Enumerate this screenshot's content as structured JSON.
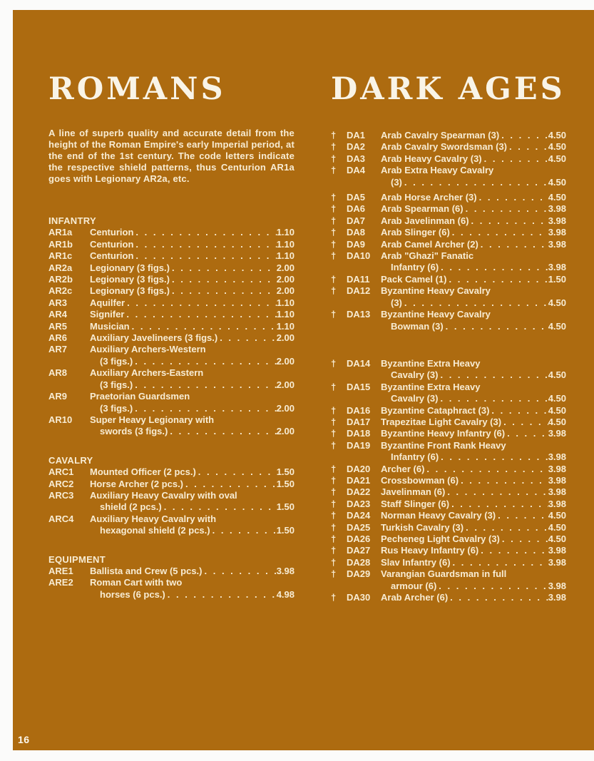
{
  "page": {
    "number": "16"
  },
  "colors": {
    "sheet_bg": "#ad6b10",
    "text_color": "#f8ecd3",
    "title_color": "#f9f4e7",
    "page_bg": "#fbfbfa"
  },
  "columns": [
    {
      "title": "ROMANS",
      "intro": "A line of superb quality and accurate detail from the height of the Roman Empire's early Imperial period, at the end of the 1st century. The code letters indicate the respective shield patterns, thus Centurion AR1a goes with Legionary AR2a, etc.",
      "sections": [
        {
          "header": "INFANTRY",
          "items": [
            {
              "code": "AR1a",
              "lines": [
                "Centurion"
              ],
              "price": "1.10"
            },
            {
              "code": "AR1b",
              "lines": [
                "Centurion"
              ],
              "price": "1.10"
            },
            {
              "code": "AR1c",
              "lines": [
                "Centurion"
              ],
              "price": "1.10"
            },
            {
              "code": "AR2a",
              "lines": [
                "Legionary (3 figs.)"
              ],
              "price": "2.00"
            },
            {
              "code": "AR2b",
              "lines": [
                "Legionary (3 figs.)"
              ],
              "price": "2.00"
            },
            {
              "code": "AR2c",
              "lines": [
                "Legionary (3 figs.)"
              ],
              "price": "2.00"
            },
            {
              "code": "AR3",
              "lines": [
                "Aquilfer"
              ],
              "price": "1.10"
            },
            {
              "code": "AR4",
              "lines": [
                "Signifer"
              ],
              "price": "1.10"
            },
            {
              "code": "AR5",
              "lines": [
                "Musician"
              ],
              "price": "1.10"
            },
            {
              "code": "AR6",
              "lines": [
                "Auxiliary Javelineers (3 figs.)"
              ],
              "price": "2.00"
            },
            {
              "code": "AR7",
              "lines": [
                "Auxiliary Archers-Western",
                "(3 figs.)"
              ],
              "price": "2.00"
            },
            {
              "code": "AR8",
              "lines": [
                "Auxiliary Archers-Eastern",
                "(3 figs.)"
              ],
              "price": "2.00"
            },
            {
              "code": "AR9",
              "lines": [
                "Praetorian Guardsmen",
                "(3 figs.)"
              ],
              "price": "2.00"
            },
            {
              "code": "AR10",
              "lines": [
                "Super Heavy Legionary with",
                "swords (3 figs.)"
              ],
              "price": "2.00"
            }
          ]
        },
        {
          "header": "CAVALRY",
          "items": [
            {
              "code": "ARC1",
              "lines": [
                "Mounted Officer (2 pcs.)"
              ],
              "price": "1.50"
            },
            {
              "code": "ARC2",
              "lines": [
                "Horse Archer (2 pcs.)"
              ],
              "price": "1.50"
            },
            {
              "code": "ARC3",
              "lines": [
                "Auxiliary Heavy Cavalry with oval",
                "shield (2 pcs.)"
              ],
              "price": "1.50"
            },
            {
              "code": "ARC4",
              "lines": [
                "Auxiliary Heavy Cavalry with",
                "hexagonal shield (2 pcs.)"
              ],
              "price": "1.50"
            }
          ]
        },
        {
          "header": "EQUIPMENT",
          "items": [
            {
              "code": "ARE1",
              "lines": [
                "Ballista and Crew (5 pcs.)"
              ],
              "price": "3.98"
            },
            {
              "code": "ARE2",
              "lines": [
                "Roman Cart with two",
                "horses (6 pcs.)"
              ],
              "price": "4.98"
            }
          ]
        }
      ]
    },
    {
      "title": "DARK AGES",
      "intro": "",
      "sections": [
        {
          "header": "",
          "items": [
            {
              "dagger": "†",
              "code": "DA1",
              "lines": [
                "Arab Cavalry Spearman (3)"
              ],
              "price": "4.50"
            },
            {
              "dagger": "†",
              "code": "DA2",
              "lines": [
                "Arab Cavalry Swordsman (3)"
              ],
              "price": "4.50"
            },
            {
              "dagger": "†",
              "code": "DA3",
              "lines": [
                "Arab Heavy Cavalry (3)"
              ],
              "price": "4.50"
            },
            {
              "dagger": "†",
              "code": "DA4",
              "lines": [
                "Arab Extra Heavy Cavalry",
                "(3)"
              ],
              "price": "4.50"
            },
            {
              "dagger": "†",
              "code": "DA5",
              "lines": [
                "Arab Horse Archer (3)"
              ],
              "price": "4.50",
              "space_before": "small"
            },
            {
              "dagger": "†",
              "code": "DA6",
              "lines": [
                "Arab Spearman (6)"
              ],
              "price": "3.98"
            },
            {
              "dagger": "†",
              "code": "DA7",
              "lines": [
                "Arab Javelinman (6)"
              ],
              "price": "3.98"
            },
            {
              "dagger": "†",
              "code": "DA8",
              "lines": [
                "Arab Slinger (6)"
              ],
              "price": "3.98"
            },
            {
              "dagger": "†",
              "code": "DA9",
              "lines": [
                "Arab Camel Archer (2)"
              ],
              "price": "3.98"
            },
            {
              "dagger": "†",
              "code": "DA10",
              "lines": [
                "Arab \"Ghazi\" Fanatic",
                "Infantry (6)"
              ],
              "price": "3.98"
            },
            {
              "dagger": "†",
              "code": "DA11",
              "lines": [
                "Pack Camel (1)"
              ],
              "price": "1.50"
            },
            {
              "dagger": "†",
              "code": "DA12",
              "lines": [
                "Byzantine Heavy Cavalry",
                "(3)"
              ],
              "price": "4.50"
            },
            {
              "dagger": "†",
              "code": "DA13",
              "lines": [
                "Byzantine Heavy Cavalry",
                "Bowman (3)"
              ],
              "price": "4.50"
            },
            {
              "dagger": "†",
              "code": "DA14",
              "lines": [
                "Byzantine Extra Heavy",
                "Cavalry (3)"
              ],
              "price": "4.50",
              "space_before": "large"
            },
            {
              "dagger": "†",
              "code": "DA15",
              "lines": [
                "Byzantine Extra Heavy",
                "Cavalry (3)"
              ],
              "price": "4.50"
            },
            {
              "dagger": "†",
              "code": "DA16",
              "lines": [
                "Byzantine Cataphract (3)"
              ],
              "price": "4.50"
            },
            {
              "dagger": "†",
              "code": "DA17",
              "lines": [
                "Trapezitae Light Cavalry (3)"
              ],
              "price": "4.50"
            },
            {
              "dagger": "†",
              "code": "DA18",
              "lines": [
                "Byzantine Heavy Infantry (6)"
              ],
              "price": "3.98"
            },
            {
              "dagger": "†",
              "code": "DA19",
              "lines": [
                "Byzantine Front Rank Heavy",
                "Infantry (6)"
              ],
              "price": "3.98"
            },
            {
              "dagger": "†",
              "code": "DA20",
              "lines": [
                "Archer (6)"
              ],
              "price": "3.98"
            },
            {
              "dagger": "†",
              "code": "DA21",
              "lines": [
                "Crossbowman (6)"
              ],
              "price": "3.98"
            },
            {
              "dagger": "†",
              "code": "DA22",
              "lines": [
                "Javelinman (6)"
              ],
              "price": "3.98"
            },
            {
              "dagger": "†",
              "code": "DA23",
              "lines": [
                "Staff Slinger (6)"
              ],
              "price": "3.98"
            },
            {
              "dagger": "†",
              "code": "DA24",
              "lines": [
                "Norman Heavy Cavalry (3)"
              ],
              "price": "4.50"
            },
            {
              "dagger": "†",
              "code": "DA25",
              "lines": [
                "Turkish Cavalry (3)"
              ],
              "price": "4.50"
            },
            {
              "dagger": "†",
              "code": "DA26",
              "lines": [
                "Pecheneg Light Cavalry (3)"
              ],
              "price": "4.50"
            },
            {
              "dagger": "†",
              "code": "DA27",
              "lines": [
                "Rus Heavy Infantry (6)"
              ],
              "price": "3.98"
            },
            {
              "dagger": "†",
              "code": "DA28",
              "lines": [
                "Slav Infantry (6)"
              ],
              "price": "3.98"
            },
            {
              "dagger": "†",
              "code": "DA29",
              "lines": [
                "Varangian Guardsman in full",
                "armour (6)"
              ],
              "price": "3.98"
            },
            {
              "dagger": "†",
              "code": "DA30",
              "lines": [
                "Arab Archer (6)"
              ],
              "price": "3.98"
            }
          ]
        }
      ]
    }
  ]
}
